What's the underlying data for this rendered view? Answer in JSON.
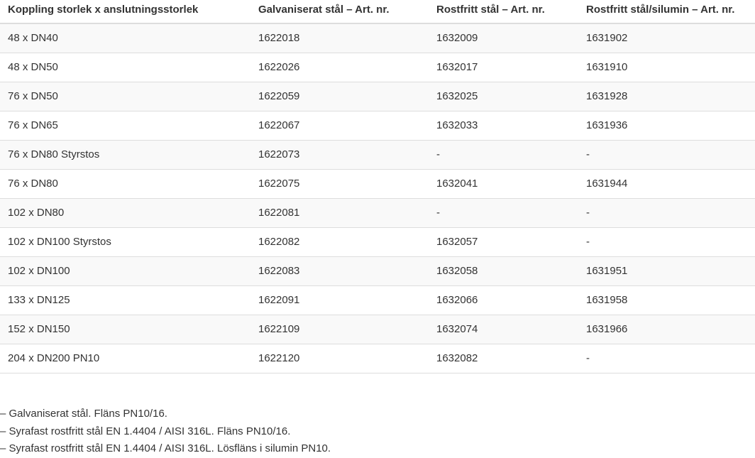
{
  "table": {
    "headers": [
      "Koppling storlek x anslutningsstorlek",
      "Galvaniserat stål – Art. nr.",
      "Rostfritt stål – Art. nr.",
      "Rostfritt stål/silumin – Art. nr."
    ],
    "rows": [
      [
        "48 x DN40",
        "1622018",
        "1632009",
        "1631902"
      ],
      [
        "48 x DN50",
        "1622026",
        "1632017",
        "1631910"
      ],
      [
        "76 x DN50",
        "1622059",
        "1632025",
        "1631928"
      ],
      [
        "76 x DN65",
        "1622067",
        "1632033",
        "1631936"
      ],
      [
        "76 x DN80 Styrstos",
        "1622073",
        "-",
        "-"
      ],
      [
        "76 x DN80",
        "1622075",
        "1632041",
        "1631944"
      ],
      [
        "102 x DN80",
        "1622081",
        "-",
        "-"
      ],
      [
        "102 x DN100 Styrstos",
        "1622082",
        "1632057",
        "-"
      ],
      [
        "102 x DN100",
        "1622083",
        "1632058",
        "1631951"
      ],
      [
        "133 x DN125",
        "1622091",
        "1632066",
        "1631958"
      ],
      [
        "152 x DN150",
        "1622109",
        "1632074",
        "1631966"
      ],
      [
        "204 x DN200 PN10",
        "1622120",
        "1632082",
        "-"
      ]
    ]
  },
  "notes": [
    "– Galvaniserat stål. Fläns PN10/16.",
    "– Syrafast rostfritt stål EN 1.4404 / AISI 316L. Fläns PN10/16.",
    "– Syrafast rostfritt stål EN 1.4404 / AISI 316L. Lösfläns i silumin PN10."
  ]
}
